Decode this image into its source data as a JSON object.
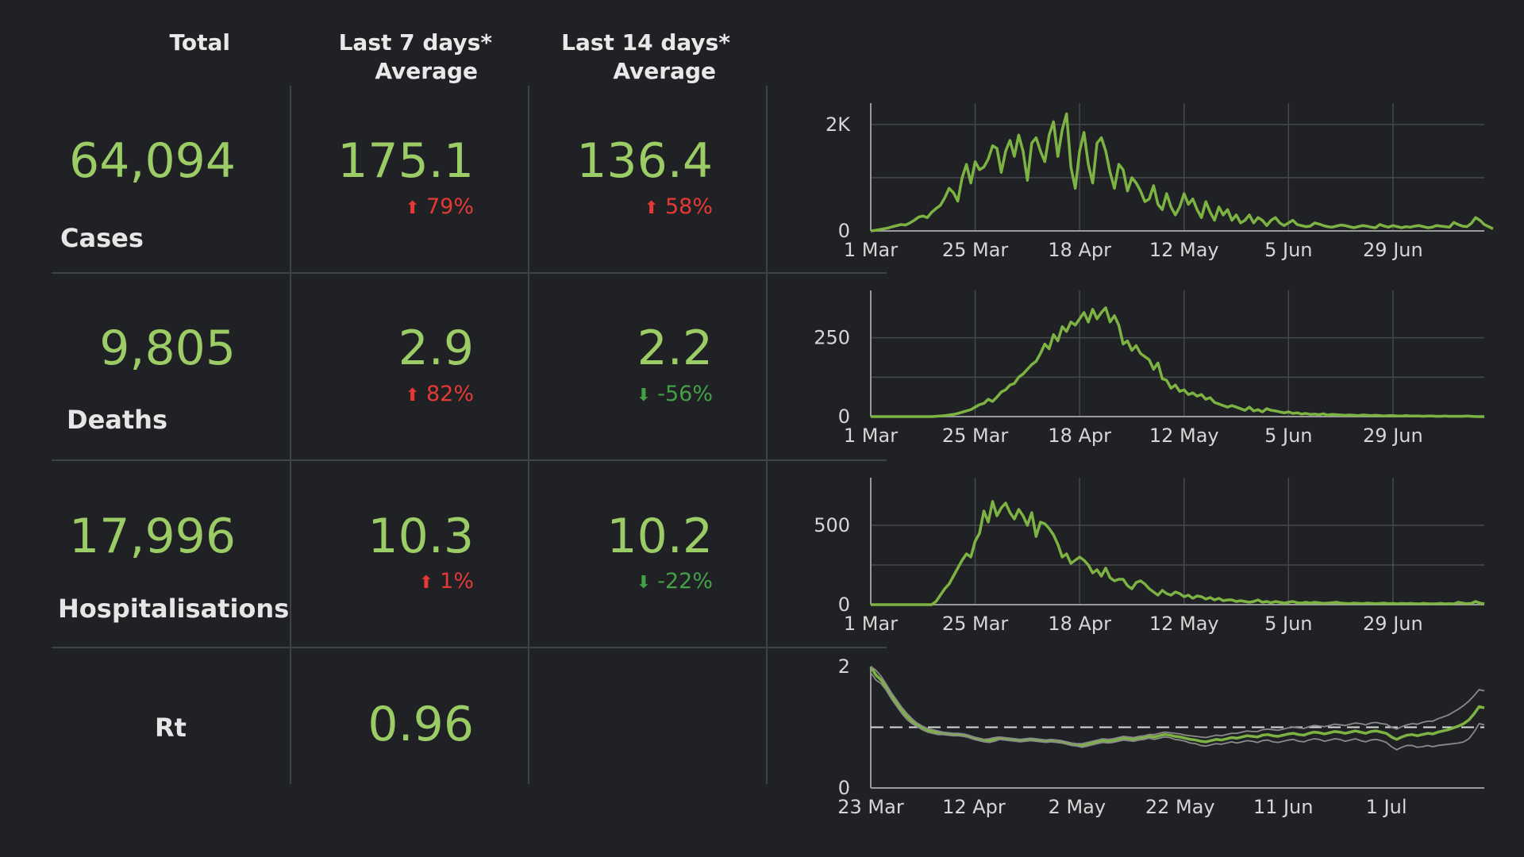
{
  "header": {
    "total": "Total",
    "last7_line1": "Last 7 days*",
    "last7_line2": "Average",
    "last14_line1": "Last 14 days*",
    "last14_line2": "Average"
  },
  "rows": {
    "cases": {
      "label": "Cases",
      "total": "64,094",
      "avg7": "175.1",
      "chg7": "79%",
      "avg14": "136.4",
      "chg14": "58%"
    },
    "deaths": {
      "label": "Deaths",
      "total": "9,805",
      "avg7": "2.9",
      "chg7": "82%",
      "avg14": "2.2",
      "chg14": "-56%"
    },
    "hosp": {
      "label": "Hospitalisations",
      "total": "17,996",
      "avg7": "10.3",
      "chg7": "1%",
      "avg14": "10.2",
      "chg14": "-22%"
    },
    "rt": {
      "label": "Rt",
      "value": "0.96"
    }
  },
  "arrows": {
    "up": "⬆",
    "down": "⬇"
  },
  "colors": {
    "value_green": "#9ccc65",
    "increase_red": "#e53935",
    "decrease_green": "#43a047",
    "line": "#7cb342",
    "band": "#8a8a8a"
  },
  "chart_data": [
    {
      "type": "line",
      "ylim": [
        0,
        2400
      ],
      "yticks": [
        {
          "value": 0,
          "label": "0"
        },
        {
          "value": 2000,
          "label": "2K"
        }
      ],
      "xticks": [
        {
          "day": 0,
          "label": "1 Mar"
        },
        {
          "day": 24,
          "label": "25 Mar"
        },
        {
          "day": 48,
          "label": "18 Apr"
        },
        {
          "day": 72,
          "label": "12 May"
        },
        {
          "day": 96,
          "label": "5 Jun"
        },
        {
          "day": 120,
          "label": "29 Jun"
        }
      ],
      "xlim": [
        0,
        141
      ],
      "grid": true,
      "series": [
        {
          "values": [
            0,
            10,
            25,
            40,
            55,
            80,
            100,
            120,
            110,
            150,
            200,
            260,
            280,
            250,
            350,
            420,
            480,
            620,
            800,
            720,
            560,
            1000,
            1250,
            900,
            1300,
            1150,
            1200,
            1350,
            1600,
            1550,
            1100,
            1500,
            1700,
            1400,
            1800,
            1500,
            950,
            1650,
            1750,
            1500,
            1300,
            1800,
            2050,
            1400,
            1900,
            2200,
            1200,
            800,
            1500,
            1850,
            1250,
            900,
            1650,
            1750,
            1500,
            1100,
            800,
            1250,
            1150,
            750,
            1000,
            900,
            750,
            550,
            600,
            850,
            500,
            400,
            700,
            450,
            300,
            450,
            700,
            500,
            600,
            400,
            250,
            550,
            350,
            200,
            450,
            300,
            400,
            200,
            300,
            150,
            200,
            300,
            150,
            250,
            200,
            100,
            200,
            250,
            150,
            100,
            150,
            200,
            120,
            100,
            80,
            90,
            150,
            130,
            100,
            80,
            70,
            90,
            110,
            100,
            80,
            60,
            80,
            100,
            90,
            70,
            60,
            120,
            90,
            70,
            100,
            80,
            60,
            80,
            70,
            90,
            100,
            80,
            60,
            70,
            100,
            90,
            80,
            70,
            160,
            120,
            90,
            80,
            140,
            250,
            200,
            120,
            80,
            40
          ]
        }
      ]
    },
    {
      "type": "line",
      "ylim": [
        0,
        400
      ],
      "yticks": [
        {
          "value": 0,
          "label": "0"
        },
        {
          "value": 250,
          "label": "250"
        }
      ],
      "xticks": [
        {
          "day": 0,
          "label": "1 Mar"
        },
        {
          "day": 24,
          "label": "25 Mar"
        },
        {
          "day": 48,
          "label": "18 Apr"
        },
        {
          "day": 72,
          "label": "12 May"
        },
        {
          "day": 96,
          "label": "5 Jun"
        },
        {
          "day": 120,
          "label": "29 Jun"
        }
      ],
      "xlim": [
        0,
        141
      ],
      "grid": true,
      "series": [
        {
          "values": [
            0,
            0,
            0,
            0,
            0,
            0,
            0,
            0,
            0,
            0,
            0,
            0,
            0,
            0,
            0,
            1,
            2,
            3,
            5,
            7,
            10,
            14,
            18,
            22,
            30,
            38,
            42,
            55,
            48,
            62,
            78,
            85,
            100,
            105,
            125,
            135,
            150,
            165,
            175,
            200,
            230,
            215,
            260,
            240,
            285,
            270,
            300,
            290,
            310,
            330,
            300,
            340,
            310,
            330,
            345,
            300,
            320,
            290,
            230,
            240,
            210,
            225,
            200,
            190,
            180,
            150,
            170,
            120,
            115,
            90,
            100,
            80,
            85,
            70,
            75,
            65,
            70,
            55,
            60,
            45,
            40,
            35,
            30,
            35,
            30,
            25,
            20,
            30,
            18,
            22,
            15,
            25,
            20,
            18,
            15,
            12,
            15,
            10,
            12,
            8,
            10,
            7,
            8,
            6,
            9,
            5,
            7,
            6,
            5,
            4,
            5,
            4,
            3,
            5,
            4,
            3,
            4,
            3,
            2,
            3,
            3,
            2,
            2,
            3,
            2,
            2,
            2,
            1,
            2,
            2,
            1,
            1,
            2,
            1,
            1,
            1,
            1,
            2,
            1,
            0,
            0,
            0
          ]
        }
      ]
    },
    {
      "type": "line",
      "ylim": [
        0,
        800
      ],
      "yticks": [
        {
          "value": 0,
          "label": "0"
        },
        {
          "value": 500,
          "label": "500"
        }
      ],
      "xticks": [
        {
          "day": 0,
          "label": "1 Mar"
        },
        {
          "day": 24,
          "label": "25 Mar"
        },
        {
          "day": 48,
          "label": "18 Apr"
        },
        {
          "day": 72,
          "label": "12 May"
        },
        {
          "day": 96,
          "label": "5 Jun"
        },
        {
          "day": 120,
          "label": "29 Jun"
        }
      ],
      "xlim": [
        0,
        141
      ],
      "grid": true,
      "series": [
        {
          "values": [
            0,
            0,
            0,
            0,
            0,
            0,
            0,
            0,
            0,
            0,
            0,
            0,
            0,
            0,
            0,
            20,
            60,
            100,
            130,
            180,
            230,
            280,
            320,
            300,
            400,
            450,
            590,
            520,
            650,
            560,
            610,
            640,
            580,
            540,
            600,
            560,
            500,
            580,
            430,
            520,
            510,
            480,
            440,
            380,
            300,
            320,
            260,
            280,
            300,
            280,
            250,
            200,
            220,
            180,
            230,
            170,
            150,
            160,
            160,
            120,
            100,
            140,
            150,
            130,
            100,
            80,
            60,
            90,
            70,
            60,
            80,
            70,
            50,
            60,
            40,
            55,
            50,
            35,
            45,
            30,
            40,
            25,
            30,
            30,
            20,
            25,
            20,
            15,
            20,
            30,
            15,
            20,
            12,
            20,
            15,
            10,
            15,
            20,
            12,
            10,
            15,
            10,
            15,
            12,
            8,
            10,
            12,
            15,
            10,
            8,
            6,
            10,
            8,
            6,
            10,
            8,
            6,
            8,
            10,
            6,
            8,
            5,
            8,
            6,
            8,
            6,
            5,
            8,
            6,
            5,
            6,
            8,
            5,
            6,
            5,
            15,
            10,
            6,
            8,
            20,
            10,
            5
          ]
        }
      ]
    },
    {
      "type": "line",
      "ylim": [
        0,
        2
      ],
      "yticks": [
        {
          "value": 0,
          "label": "0"
        },
        {
          "value": 2,
          "label": "2"
        }
      ],
      "xticks": [
        {
          "day": 0,
          "label": "23 Mar"
        },
        {
          "day": 20,
          "label": "12 Apr"
        },
        {
          "day": 40,
          "label": "2 May"
        },
        {
          "day": 60,
          "label": "22 May"
        },
        {
          "day": 80,
          "label": "11 Jun"
        },
        {
          "day": 100,
          "label": "1 Jul"
        }
      ],
      "xlim": [
        0,
        119
      ],
      "reference_line": 1,
      "series": [
        {
          "values": [
            2.0,
            1.86,
            1.78,
            1.66,
            1.52,
            1.4,
            1.28,
            1.18,
            1.1,
            1.04,
            0.99,
            0.95,
            0.93,
            0.91,
            0.9,
            0.89,
            0.88,
            0.88,
            0.87,
            0.85,
            0.82,
            0.8,
            0.78,
            0.78,
            0.8,
            0.82,
            0.81,
            0.8,
            0.79,
            0.78,
            0.79,
            0.8,
            0.79,
            0.78,
            0.77,
            0.78,
            0.77,
            0.76,
            0.74,
            0.72,
            0.71,
            0.7,
            0.72,
            0.74,
            0.76,
            0.78,
            0.77,
            0.78,
            0.8,
            0.82,
            0.81,
            0.8,
            0.82,
            0.83,
            0.85,
            0.84,
            0.86,
            0.88,
            0.87,
            0.85,
            0.84,
            0.82,
            0.8,
            0.79,
            0.77,
            0.76,
            0.78,
            0.8,
            0.79,
            0.81,
            0.83,
            0.82,
            0.84,
            0.86,
            0.85,
            0.84,
            0.87,
            0.88,
            0.86,
            0.85,
            0.87,
            0.89,
            0.9,
            0.88,
            0.87,
            0.9,
            0.92,
            0.91,
            0.89,
            0.91,
            0.93,
            0.92,
            0.9,
            0.92,
            0.94,
            0.92,
            0.9,
            0.93,
            0.94,
            0.92,
            0.9,
            0.84,
            0.8,
            0.84,
            0.87,
            0.88,
            0.86,
            0.88,
            0.9,
            0.89,
            0.92,
            0.94,
            0.96,
            0.99,
            1.02,
            1.06,
            1.12,
            1.22,
            1.34,
            1.32
          ]
        },
        {
          "values": [
            2.1,
            1.94,
            1.84,
            1.71,
            1.57,
            1.45,
            1.33,
            1.23,
            1.14,
            1.07,
            1.02,
            0.98,
            0.96,
            0.94,
            0.92,
            0.91,
            0.9,
            0.9,
            0.89,
            0.87,
            0.84,
            0.82,
            0.8,
            0.81,
            0.83,
            0.84,
            0.83,
            0.82,
            0.81,
            0.8,
            0.81,
            0.82,
            0.81,
            0.8,
            0.79,
            0.8,
            0.79,
            0.78,
            0.76,
            0.74,
            0.73,
            0.73,
            0.75,
            0.77,
            0.79,
            0.81,
            0.8,
            0.81,
            0.83,
            0.85,
            0.84,
            0.83,
            0.85,
            0.86,
            0.88,
            0.88,
            0.9,
            0.92,
            0.91,
            0.9,
            0.89,
            0.87,
            0.86,
            0.85,
            0.84,
            0.83,
            0.85,
            0.87,
            0.86,
            0.88,
            0.9,
            0.9,
            0.92,
            0.94,
            0.93,
            0.93,
            0.96,
            0.97,
            0.96,
            0.95,
            0.97,
            0.99,
            1.0,
            0.99,
            0.98,
            1.01,
            1.03,
            1.02,
            1.01,
            1.03,
            1.05,
            1.04,
            1.03,
            1.05,
            1.07,
            1.06,
            1.04,
            1.07,
            1.08,
            1.06,
            1.05,
            1.0,
            0.97,
            1.01,
            1.04,
            1.06,
            1.05,
            1.08,
            1.1,
            1.1,
            1.14,
            1.17,
            1.2,
            1.25,
            1.3,
            1.36,
            1.43,
            1.52,
            1.62,
            1.6
          ]
        },
        {
          "values": [
            1.9,
            1.78,
            1.72,
            1.61,
            1.47,
            1.35,
            1.23,
            1.13,
            1.06,
            1.01,
            0.96,
            0.92,
            0.9,
            0.88,
            0.88,
            0.87,
            0.86,
            0.86,
            0.85,
            0.83,
            0.8,
            0.78,
            0.76,
            0.75,
            0.77,
            0.8,
            0.79,
            0.78,
            0.77,
            0.76,
            0.77,
            0.78,
            0.77,
            0.76,
            0.75,
            0.76,
            0.75,
            0.74,
            0.72,
            0.7,
            0.69,
            0.67,
            0.69,
            0.71,
            0.73,
            0.75,
            0.74,
            0.75,
            0.77,
            0.79,
            0.78,
            0.77,
            0.79,
            0.8,
            0.82,
            0.8,
            0.82,
            0.84,
            0.83,
            0.8,
            0.79,
            0.77,
            0.74,
            0.73,
            0.7,
            0.69,
            0.71,
            0.73,
            0.72,
            0.74,
            0.76,
            0.74,
            0.76,
            0.78,
            0.77,
            0.75,
            0.78,
            0.79,
            0.76,
            0.75,
            0.77,
            0.79,
            0.8,
            0.77,
            0.76,
            0.79,
            0.81,
            0.8,
            0.77,
            0.79,
            0.81,
            0.8,
            0.77,
            0.79,
            0.81,
            0.78,
            0.76,
            0.79,
            0.8,
            0.78,
            0.75,
            0.68,
            0.63,
            0.67,
            0.7,
            0.7,
            0.67,
            0.68,
            0.7,
            0.68,
            0.7,
            0.71,
            0.72,
            0.73,
            0.74,
            0.76,
            0.81,
            0.92,
            1.06,
            1.04
          ]
        }
      ]
    }
  ]
}
